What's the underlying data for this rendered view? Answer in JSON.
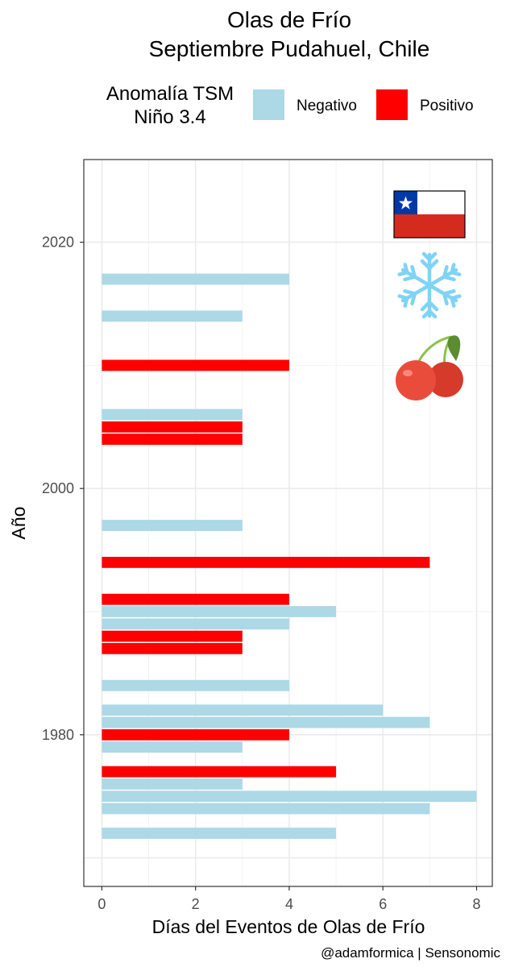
{
  "chart_data": {
    "type": "bar",
    "orientation": "horizontal",
    "title": "Olas de Frío",
    "subtitle": "Septiembre Pudahuel, Chile",
    "xlabel": "Días del Eventos de Olas de Frío",
    "ylabel": "Año",
    "caption": "@adamformica | Sensonomic",
    "legend": {
      "title_lines": [
        "Anomalía TSM",
        "Niño 3.4"
      ],
      "placement": "top",
      "entries": [
        {
          "key": "Negativo",
          "label": "Negativo",
          "color": "#add8e6"
        },
        {
          "key": "Positivo",
          "label": "Positivo",
          "color": "#ff0000"
        }
      ]
    },
    "xlim": [
      0,
      8
    ],
    "x_ticks": [
      0,
      2,
      4,
      6,
      8
    ],
    "ylim": [
      1967,
      2026
    ],
    "y_ticks": [
      1980,
      2000,
      2020
    ],
    "grid": true,
    "icons": [
      "chile-flag-icon",
      "snowflake-icon",
      "cherries-icon"
    ],
    "bars": [
      {
        "year": 2017,
        "days": 4,
        "anomaly": "Negativo"
      },
      {
        "year": 2014,
        "days": 3,
        "anomaly": "Negativo"
      },
      {
        "year": 2010,
        "days": 4,
        "anomaly": "Positivo"
      },
      {
        "year": 2006,
        "days": 3,
        "anomaly": "Negativo"
      },
      {
        "year": 2005,
        "days": 3,
        "anomaly": "Positivo"
      },
      {
        "year": 2004,
        "days": 3,
        "anomaly": "Positivo"
      },
      {
        "year": 1997,
        "days": 3,
        "anomaly": "Negativo"
      },
      {
        "year": 1994,
        "days": 7,
        "anomaly": "Positivo"
      },
      {
        "year": 1991,
        "days": 4,
        "anomaly": "Positivo"
      },
      {
        "year": 1990,
        "days": 5,
        "anomaly": "Negativo"
      },
      {
        "year": 1989,
        "days": 4,
        "anomaly": "Negativo"
      },
      {
        "year": 1988,
        "days": 3,
        "anomaly": "Positivo"
      },
      {
        "year": 1987,
        "days": 3,
        "anomaly": "Positivo"
      },
      {
        "year": 1984,
        "days": 4,
        "anomaly": "Negativo"
      },
      {
        "year": 1982,
        "days": 6,
        "anomaly": "Negativo"
      },
      {
        "year": 1981,
        "days": 7,
        "anomaly": "Negativo"
      },
      {
        "year": 1980,
        "days": 4,
        "anomaly": "Positivo"
      },
      {
        "year": 1979,
        "days": 3,
        "anomaly": "Negativo"
      },
      {
        "year": 1977,
        "days": 5,
        "anomaly": "Positivo"
      },
      {
        "year": 1976,
        "days": 3,
        "anomaly": "Negativo"
      },
      {
        "year": 1975,
        "days": 8,
        "anomaly": "Negativo"
      },
      {
        "year": 1974,
        "days": 7,
        "anomaly": "Negativo"
      },
      {
        "year": 1972,
        "days": 5,
        "anomaly": "Negativo"
      }
    ]
  }
}
